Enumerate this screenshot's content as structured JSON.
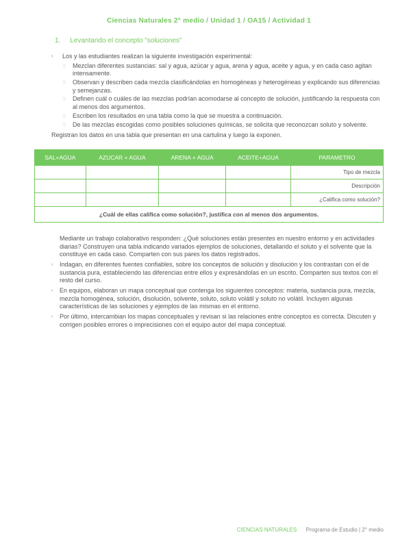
{
  "header": {
    "title": "Ciencias Naturales 2° medio / Unidad 1 / OA15 / Actividad 1"
  },
  "section": {
    "number": "1.",
    "title": "Levantando el concepto \"soluciones\""
  },
  "intro": {
    "mark": "›",
    "text": "Los y las estudiantes realizan la siguiente investigación experimental:"
  },
  "sublist": [
    {
      "mark": "::",
      "text": "Mezclan diferentes sustancias: sal y agua, azúcar y agua, arena y agua, aceite y agua, y en cada caso agitan intensamente."
    },
    {
      "mark": "::",
      "text": "Observan y describen cada mezcla clasificándolas en homogéneas y heterogéneas y explicando sus diferencias y semejanzas."
    },
    {
      "mark": "::",
      "text": "Definen cuál o cuáles de las mezclas podrían acomodarse al concepto de solución, justificando la respuesta con al menos dos argumentos."
    },
    {
      "mark": "::",
      "text": "Escriben los resultados en una tabla como la que se muestra a continuación."
    },
    {
      "mark": "::",
      "text": "De las mezclas escogidas como posibles soluciones químicas, se solicita que reconozcan soluto y solvente."
    }
  ],
  "closing": "Registran los datos en una tabla que presentan en una cartulina y luego la exponen.",
  "table": {
    "headers": [
      "SAL+AGUA",
      "AZUCAR + AGUA",
      "ARENA + AGUA",
      "ACEITE+AGUA",
      "PARAMETRO"
    ],
    "params": [
      "Tipo de mezcla",
      "Descripción",
      "¿Califica como solución?"
    ],
    "footer_question": "¿Cuál de ellas califica como solución?, justifica con al menos dos argumentos.",
    "header_bg": "#74c95e",
    "border_color": "#74c95e"
  },
  "body": [
    {
      "mark": "",
      "text": "Mediante un trabajo colaborativo responden: ¿Qué soluciones están presentes en nuestro entorno y en actividades diarias? Construyen una tabla indicando variados ejemplos de soluciones, detallando el soluto y el solvente que la constituye en cada caso. Comparten con sus pares los datos registrados."
    },
    {
      "mark": "›",
      "text": "Indagan, en diferentes fuentes confiables, sobre los conceptos de solución y disolución y los contrastan con el de sustancia pura, estableciendo las diferencias entre ellos y expresándolas en un escrito. Comparten sus textos con el resto del curso."
    },
    {
      "mark": "›",
      "text": "En equipos, elaboran un mapa conceptual que contenga los siguientes conceptos: materia, sustancia pura, mezcla, mezcla homogénea, solución, disolución, solvente, soluto, soluto volátil y soluto no volátil. Incluyen algunas características de las soluciones y ejemplos de las mismas en el entorno."
    },
    {
      "mark": "›",
      "text": "Por último, intercambian los mapas conceptuales y revisan si las relaciones entre conceptos es correcta. Discuten y corrigen posibles errores o imprecisiones con el equipo autor del mapa conceptual."
    }
  ],
  "footer": {
    "cn": "CIENCIAS NATURALES",
    "rest": "Programa de Estudio   |   2° medio"
  }
}
